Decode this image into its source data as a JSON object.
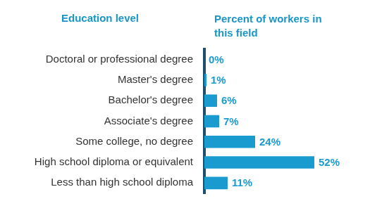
{
  "chart_data": {
    "type": "bar",
    "orientation": "horizontal",
    "y_label": "Education level",
    "x_label": "Percent of workers in this field",
    "categories": [
      "Doctoral or professional degree",
      "Master's degree",
      "Bachelor's degree",
      "Associate's degree",
      "Some college, no degree",
      "High school diploma or equivalent",
      "Less than high school diploma"
    ],
    "values": [
      0,
      1,
      6,
      7,
      24,
      52,
      11
    ],
    "value_labels": [
      "0%",
      "1%",
      "6%",
      "7%",
      "24%",
      "52%",
      "11%"
    ],
    "color": "#1a9bd0",
    "xlim": [
      0,
      75
    ],
    "data_labels": true,
    "grid": false,
    "tick_labels": "y"
  }
}
